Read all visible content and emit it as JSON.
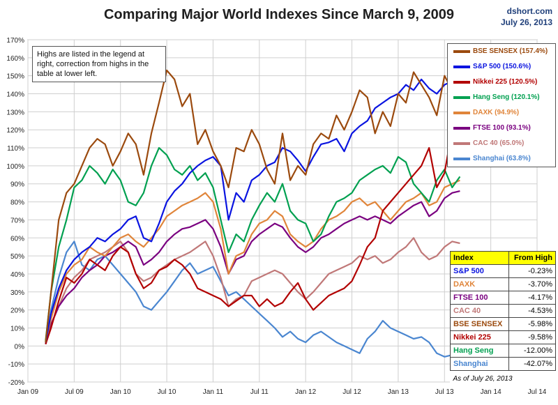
{
  "title": "Comparing Major World Indexes Since March 9, 2009",
  "source": {
    "site": "dshort.com",
    "date": "July 26, 2013"
  },
  "note": "Highs are listed in the legend at right, correction from highs in the table at lower left.",
  "chart_data": {
    "type": "line",
    "title": "Comparing Major World Indexes Since March 9, 2009",
    "xlabel": "",
    "ylabel": "",
    "ylim": [
      -20,
      170
    ],
    "yticks": [
      -20,
      -10,
      0,
      10,
      20,
      30,
      40,
      50,
      60,
      70,
      80,
      90,
      100,
      110,
      120,
      130,
      140,
      150,
      160,
      170
    ],
    "xticks": [
      "Jan 09",
      "Jul 09",
      "Jan 10",
      "Jul 10",
      "Jan 11",
      "Jul 11",
      "Jan 12",
      "Jul 12",
      "Jan 13",
      "Jul 13",
      "Jan 14",
      "Jul 14"
    ],
    "x_range_months": [
      0,
      66
    ],
    "grid": true,
    "legend_position": "right",
    "series": [
      {
        "name": "BSE SENSEX",
        "high_label": "BSE SENSEX (157.4%)",
        "color": "#9b4a0e",
        "x": [
          2.3,
          3,
          4,
          5,
          6,
          7,
          8,
          9,
          10,
          11,
          12,
          13,
          14,
          15,
          16,
          17,
          18,
          19,
          20,
          21,
          22,
          23,
          24,
          25,
          26,
          27,
          28,
          29,
          30,
          31,
          32,
          33,
          34,
          35,
          36,
          37,
          38,
          39,
          40,
          41,
          42,
          43,
          44,
          45,
          46,
          47,
          48,
          49,
          50,
          51,
          52,
          53,
          54,
          55,
          56
        ],
        "y": [
          2,
          30,
          70,
          85,
          90,
          100,
          110,
          115,
          112,
          100,
          108,
          118,
          112,
          95,
          118,
          135,
          153,
          148,
          133,
          140,
          112,
          120,
          108,
          100,
          88,
          110,
          108,
          120,
          112,
          98,
          90,
          118,
          92,
          100,
          95,
          112,
          118,
          115,
          128,
          120,
          130,
          142,
          138,
          118,
          130,
          122,
          140,
          135,
          152,
          145,
          138,
          128,
          150,
          142,
          143
        ]
      },
      {
        "name": "S&P 500",
        "high_label": "S&P 500 (150.6%)",
        "color": "#0a14e0",
        "x": [
          2.3,
          3,
          4,
          5,
          6,
          7,
          8,
          9,
          10,
          11,
          12,
          13,
          14,
          15,
          16,
          17,
          18,
          19,
          20,
          21,
          22,
          23,
          24,
          25,
          26,
          27,
          28,
          29,
          30,
          31,
          32,
          33,
          34,
          35,
          36,
          37,
          38,
          39,
          40,
          41,
          42,
          43,
          44,
          45,
          46,
          47,
          48,
          49,
          50,
          51,
          52,
          53,
          54,
          55,
          56
        ],
        "y": [
          2,
          18,
          32,
          42,
          48,
          52,
          55,
          60,
          58,
          62,
          65,
          70,
          72,
          60,
          58,
          68,
          80,
          86,
          90,
          96,
          100,
          103,
          105,
          100,
          70,
          85,
          80,
          92,
          95,
          100,
          102,
          110,
          108,
          103,
          97,
          105,
          112,
          113,
          115,
          108,
          118,
          122,
          125,
          132,
          135,
          138,
          140,
          145,
          142,
          148,
          143,
          140,
          145,
          147,
          150
        ]
      },
      {
        "name": "Nikkei 225",
        "high_label": "Nikkei 225 (120.5%)",
        "color": "#b20000",
        "x": [
          2.3,
          3,
          4,
          5,
          6,
          7,
          8,
          9,
          10,
          11,
          12,
          13,
          14,
          15,
          16,
          17,
          18,
          19,
          20,
          21,
          22,
          23,
          24,
          25,
          26,
          27,
          28,
          29,
          30,
          31,
          32,
          33,
          34,
          35,
          36,
          37,
          38,
          39,
          40,
          41,
          42,
          43,
          44,
          45,
          46,
          47,
          48,
          49,
          50,
          51,
          52,
          53,
          54,
          55,
          56
        ],
        "y": [
          1,
          10,
          25,
          38,
          35,
          40,
          48,
          45,
          42,
          50,
          55,
          52,
          40,
          32,
          35,
          42,
          44,
          48,
          45,
          40,
          32,
          30,
          28,
          26,
          22,
          25,
          28,
          28,
          22,
          26,
          22,
          24,
          30,
          35,
          26,
          20,
          24,
          28,
          30,
          32,
          36,
          45,
          55,
          60,
          75,
          80,
          85,
          90,
          95,
          100,
          110,
          88,
          96,
          120,
          100
        ]
      },
      {
        "name": "Hang Seng",
        "high_label": "Hang Seng (120.1%)",
        "color": "#00a050",
        "x": [
          2.3,
          3,
          4,
          5,
          6,
          7,
          8,
          9,
          10,
          11,
          12,
          13,
          14,
          15,
          16,
          17,
          18,
          19,
          20,
          21,
          22,
          23,
          24,
          25,
          26,
          27,
          28,
          29,
          30,
          31,
          32,
          33,
          34,
          35,
          36,
          37,
          38,
          39,
          40,
          41,
          42,
          43,
          44,
          45,
          46,
          47,
          48,
          49,
          50,
          51,
          52,
          53,
          54,
          55,
          56
        ],
        "y": [
          3,
          30,
          55,
          70,
          88,
          92,
          100,
          96,
          90,
          98,
          92,
          80,
          78,
          85,
          100,
          110,
          106,
          98,
          95,
          100,
          92,
          96,
          88,
          70,
          52,
          62,
          58,
          70,
          78,
          85,
          80,
          90,
          75,
          70,
          68,
          58,
          62,
          72,
          80,
          82,
          85,
          92,
          95,
          98,
          100,
          96,
          105,
          102,
          90,
          85,
          80,
          92,
          98,
          88,
          94
        ]
      },
      {
        "name": "DAXK",
        "high_label": "DAXK (94.9%)",
        "color": "#e0853a",
        "x": [
          2.3,
          3,
          4,
          5,
          6,
          7,
          8,
          9,
          10,
          11,
          12,
          13,
          14,
          15,
          16,
          17,
          18,
          19,
          20,
          21,
          22,
          23,
          24,
          25,
          26,
          27,
          28,
          29,
          30,
          31,
          32,
          33,
          34,
          35,
          36,
          37,
          38,
          39,
          40,
          41,
          42,
          43,
          44,
          45,
          46,
          47,
          48,
          49,
          50,
          51,
          52,
          53,
          54,
          55,
          56
        ],
        "y": [
          2,
          15,
          30,
          40,
          45,
          48,
          55,
          52,
          50,
          55,
          60,
          62,
          58,
          55,
          60,
          65,
          72,
          75,
          78,
          80,
          82,
          85,
          80,
          65,
          40,
          50,
          52,
          62,
          68,
          70,
          75,
          72,
          62,
          58,
          55,
          58,
          65,
          70,
          72,
          75,
          80,
          82,
          78,
          80,
          75,
          70,
          75,
          80,
          82,
          85,
          78,
          80,
          88,
          90,
          92
        ]
      },
      {
        "name": "FTSE 100",
        "high_label": "FTSE 100 (93.1%)",
        "color": "#7a0080",
        "x": [
          2.3,
          3,
          4,
          5,
          6,
          7,
          8,
          9,
          10,
          11,
          12,
          13,
          14,
          15,
          16,
          17,
          18,
          19,
          20,
          21,
          22,
          23,
          24,
          25,
          26,
          27,
          28,
          29,
          30,
          31,
          32,
          33,
          34,
          35,
          36,
          37,
          38,
          39,
          40,
          41,
          42,
          43,
          44,
          45,
          46,
          47,
          48,
          49,
          50,
          51,
          52,
          53,
          54,
          55,
          56
        ],
        "y": [
          1,
          12,
          22,
          28,
          32,
          38,
          42,
          45,
          50,
          52,
          55,
          58,
          55,
          45,
          48,
          52,
          58,
          62,
          65,
          66,
          68,
          70,
          65,
          55,
          40,
          48,
          50,
          58,
          62,
          65,
          68,
          66,
          60,
          55,
          52,
          55,
          60,
          62,
          65,
          68,
          70,
          72,
          70,
          72,
          70,
          68,
          72,
          75,
          78,
          80,
          72,
          75,
          82,
          85,
          86
        ]
      },
      {
        "name": "CAC 40",
        "high_label": "CAC 40 (65.0%)",
        "color": "#c07878",
        "x": [
          2.3,
          3,
          4,
          5,
          6,
          7,
          8,
          9,
          10,
          11,
          12,
          13,
          14,
          15,
          16,
          17,
          18,
          19,
          20,
          21,
          22,
          23,
          24,
          25,
          26,
          27,
          28,
          29,
          30,
          31,
          32,
          33,
          34,
          35,
          36,
          37,
          38,
          39,
          40,
          41,
          42,
          43,
          44,
          45,
          46,
          47,
          48,
          49,
          50,
          51,
          52,
          53,
          54,
          55,
          56
        ],
        "y": [
          1,
          12,
          22,
          32,
          38,
          42,
          48,
          50,
          52,
          55,
          58,
          52,
          40,
          36,
          38,
          42,
          45,
          48,
          50,
          52,
          55,
          58,
          50,
          38,
          22,
          26,
          28,
          36,
          38,
          40,
          42,
          40,
          35,
          30,
          26,
          30,
          35,
          40,
          42,
          44,
          46,
          50,
          48,
          50,
          46,
          48,
          52,
          55,
          60,
          52,
          48,
          50,
          55,
          58,
          57
        ]
      },
      {
        "name": "Shanghai",
        "high_label": "Shanghai (63.8%)",
        "color": "#4a86d0",
        "x": [
          2.3,
          3,
          4,
          5,
          6,
          7,
          8,
          9,
          10,
          11,
          12,
          13,
          14,
          15,
          16,
          17,
          18,
          19,
          20,
          21,
          22,
          23,
          24,
          25,
          26,
          27,
          28,
          29,
          30,
          31,
          32,
          33,
          34,
          35,
          36,
          37,
          38,
          39,
          40,
          41,
          42,
          43,
          44,
          45,
          46,
          47,
          48,
          49,
          50,
          51,
          52,
          53,
          54,
          55,
          56
        ],
        "y": [
          1,
          20,
          38,
          52,
          58,
          45,
          42,
          48,
          50,
          45,
          40,
          35,
          30,
          22,
          20,
          25,
          30,
          36,
          42,
          46,
          40,
          42,
          44,
          36,
          28,
          30,
          26,
          22,
          18,
          14,
          10,
          5,
          8,
          4,
          2,
          6,
          8,
          5,
          2,
          0,
          -2,
          -4,
          4,
          8,
          14,
          10,
          8,
          6,
          4,
          5,
          2,
          -4,
          -6,
          -5,
          -4
        ]
      }
    ]
  },
  "from_high_table": {
    "header": {
      "index": "Index",
      "from_high": "From High"
    },
    "rows": [
      {
        "index": "S&P 500",
        "value": "-0.23%",
        "color": "#0a14e0"
      },
      {
        "index": "DAXK",
        "value": "-3.70%",
        "color": "#e0853a"
      },
      {
        "index": "FTSE 100",
        "value": "-4.17%",
        "color": "#7a0080"
      },
      {
        "index": "CAC 40",
        "value": "-4.53%",
        "color": "#c07878"
      },
      {
        "index": "BSE SENSEX",
        "value": "-5.98%",
        "color": "#9b4a0e"
      },
      {
        "index": "Nikkei 225",
        "value": "-9.58%",
        "color": "#b20000"
      },
      {
        "index": "Hang Seng",
        "value": "-12.00%",
        "color": "#00a050"
      },
      {
        "index": "Shanghai",
        "value": "-42.07%",
        "color": "#4a86d0"
      }
    ],
    "as_of": "As of July 26, 2013"
  }
}
